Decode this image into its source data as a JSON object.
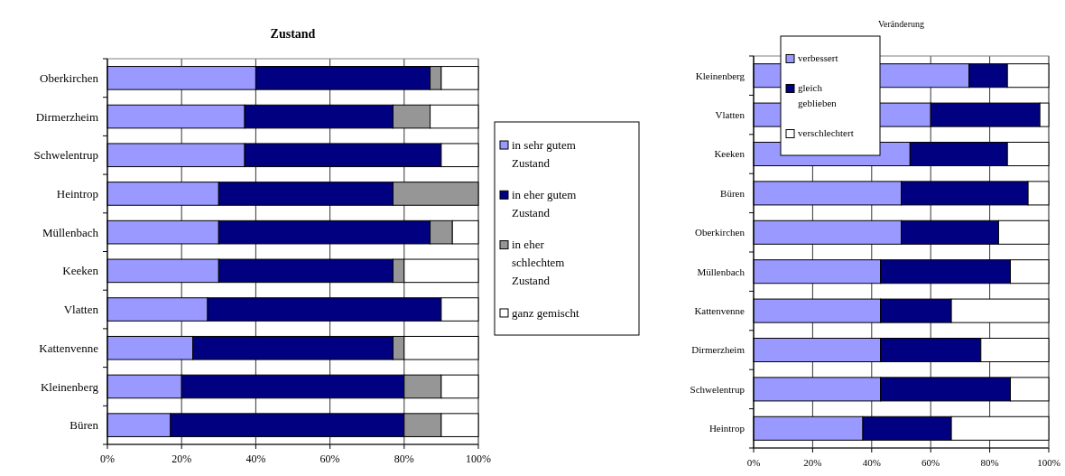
{
  "chart_data": [
    {
      "type": "bar",
      "orientation": "horizontal",
      "stacked": true,
      "title": "Zustand",
      "categories": [
        "Oberkirchen",
        "Dirmerzheim",
        "Schwelentrup",
        "Heintrop",
        "Müllenbach",
        "Keeken",
        "Vlatten",
        "Kattenvenne",
        "Kleinenberg",
        "Büren"
      ],
      "series": [
        {
          "name": "in sehr gutem Zustand",
          "color": "#9999ff",
          "values": [
            40,
            37,
            37,
            30,
            30,
            30,
            27,
            23,
            20,
            17
          ]
        },
        {
          "name": "in eher gutem Zustand",
          "color": "#000080",
          "values": [
            47,
            40,
            53,
            47,
            57,
            47,
            63,
            54,
            60,
            63
          ]
        },
        {
          "name": "in eher schlechtem Zustand",
          "color": "#969696",
          "values": [
            3,
            10,
            0,
            23,
            6,
            3,
            0,
            3,
            10,
            10
          ]
        },
        {
          "name": "ganz gemischt",
          "color": "#ffffff",
          "values": [
            10,
            13,
            10,
            0,
            7,
            20,
            10,
            20,
            10,
            10
          ]
        }
      ],
      "xlim": [
        0,
        100
      ],
      "xticks": [
        {
          "value": 0,
          "label": "0%"
        },
        {
          "value": 20,
          "label": "20%"
        },
        {
          "value": 40,
          "label": "40%"
        },
        {
          "value": 60,
          "label": "60%"
        },
        {
          "value": 80,
          "label": "80%"
        },
        {
          "value": 100,
          "label": "100%"
        }
      ],
      "grid": "x",
      "legend": "right"
    },
    {
      "type": "bar",
      "orientation": "horizontal",
      "stacked": true,
      "title": "Veränderung",
      "categories": [
        "Kleinenberg",
        "Vlatten",
        "Keeken",
        "Büren",
        "Oberkirchen",
        "Müllenbach",
        "Kattenvenne",
        "Dirmerzheim",
        "Schwelentrup",
        "Heintrop"
      ],
      "series": [
        {
          "name": "verbessert",
          "color": "#9999ff",
          "values": [
            73,
            60,
            53,
            50,
            50,
            43,
            43,
            43,
            43,
            37
          ]
        },
        {
          "name": "gleich geblieben",
          "color": "#000080",
          "values": [
            13,
            37,
            33,
            43,
            33,
            44,
            24,
            34,
            44,
            30
          ]
        },
        {
          "name": "verschlechtert",
          "color": "#ffffff",
          "values": [
            14,
            3,
            14,
            7,
            17,
            13,
            33,
            23,
            13,
            33
          ]
        }
      ],
      "xlim": [
        0,
        100
      ],
      "xticks": [
        {
          "value": 0,
          "label": "0%"
        },
        {
          "value": 20,
          "label": "20%"
        },
        {
          "value": 40,
          "label": "40%"
        },
        {
          "value": 60,
          "label": "60%"
        },
        {
          "value": 80,
          "label": "80%"
        },
        {
          "value": 100,
          "label": "100%"
        }
      ],
      "grid": "x",
      "legend": "top left"
    }
  ]
}
